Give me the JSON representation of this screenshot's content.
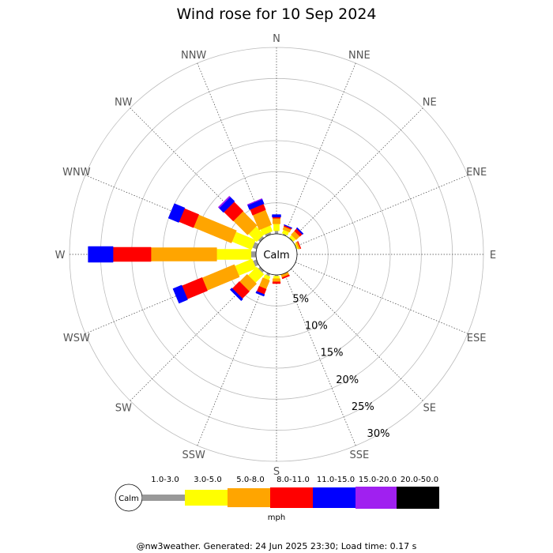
{
  "chart_data": {
    "type": "wind-rose",
    "title": "Wind rose for 10 Sep 2024",
    "directions": [
      "N",
      "NNE",
      "NE",
      "ENE",
      "E",
      "ESE",
      "SE",
      "SSE",
      "S",
      "SSW",
      "SW",
      "WSW",
      "W",
      "WNW",
      "NW",
      "NNW"
    ],
    "ring_labels": [
      "5%",
      "10%",
      "15%",
      "20%",
      "25%",
      "30%"
    ],
    "ring_values": [
      5,
      10,
      15,
      20,
      25,
      30
    ],
    "r_max": 30,
    "calm_label": "Calm",
    "unit": "mph",
    "speed_bins": [
      {
        "label": "1.0-3.0",
        "color": "#999999"
      },
      {
        "label": "3.0-5.0",
        "color": "#ffff00"
      },
      {
        "label": "5.0-8.0",
        "color": "#ffa500"
      },
      {
        "label": "8.0-11.0",
        "color": "#ff0000"
      },
      {
        "label": "11.0-15.0",
        "color": "#0000ff"
      },
      {
        "label": "15.0-20.0",
        "color": "#a020f0"
      },
      {
        "label": "20.0-50.0",
        "color": "#000000"
      }
    ],
    "series_note": "cumulative percent per direction per speed bin (index order matches speed_bins)",
    "data": [
      {
        "dir": "N",
        "angle": 0,
        "values": [
          0.5,
          1.6,
          2.5,
          2.7,
          3.1,
          3.1,
          3.1
        ]
      },
      {
        "dir": "NNE",
        "angle": 22.5,
        "values": [
          0.2,
          0.8,
          1.3,
          1.5,
          1.6,
          1.6,
          1.6
        ]
      },
      {
        "dir": "NE",
        "angle": 45,
        "values": [
          0.1,
          0.6,
          1.4,
          1.9,
          2.1,
          2.1,
          2.1
        ]
      },
      {
        "dir": "ENE",
        "angle": 67.5,
        "values": [
          0.1,
          0.3,
          0.6,
          0.7,
          0.7,
          0.7,
          0.7
        ]
      },
      {
        "dir": "E",
        "angle": 90,
        "values": [
          0.0,
          0.0,
          0.0,
          0.0,
          0.0,
          0.0,
          0.0
        ]
      },
      {
        "dir": "ESE",
        "angle": 112.5,
        "values": [
          0.0,
          0.0,
          0.0,
          0.0,
          0.0,
          0.0,
          0.0
        ]
      },
      {
        "dir": "SE",
        "angle": 135,
        "values": [
          0.0,
          0.0,
          0.0,
          0.0,
          0.0,
          0.0,
          0.0
        ]
      },
      {
        "dir": "SSE",
        "angle": 157.5,
        "values": [
          0.0,
          0.0,
          0.5,
          0.7,
          0.7,
          0.7,
          0.7
        ]
      },
      {
        "dir": "S",
        "angle": 180,
        "values": [
          0.2,
          0.6,
          1.1,
          1.4,
          1.4,
          1.4,
          1.4
        ]
      },
      {
        "dir": "SSW",
        "angle": 202.5,
        "values": [
          0.4,
          1.0,
          2.5,
          3.4,
          3.7,
          3.7,
          3.7
        ]
      },
      {
        "dir": "SW",
        "angle": 225,
        "values": [
          0.4,
          2.3,
          4.0,
          5.6,
          6.0,
          6.0,
          6.0
        ]
      },
      {
        "dir": "WSW",
        "angle": 247.5,
        "values": [
          0.6,
          3.6,
          9.2,
          12.7,
          14.2,
          14.2,
          14.2
        ]
      },
      {
        "dir": "W",
        "angle": 270,
        "values": [
          0.8,
          6.3,
          16.9,
          23.0,
          27.0,
          27.0,
          27.0
        ]
      },
      {
        "dir": "WNW",
        "angle": 292.5,
        "values": [
          0.7,
          4.1,
          10.7,
          13.2,
          15.0,
          15.0,
          15.0
        ]
      },
      {
        "dir": "NW",
        "angle": 315,
        "values": [
          0.4,
          2.2,
          5.4,
          7.5,
          8.5,
          8.7,
          8.7
        ]
      },
      {
        "dir": "NNW",
        "angle": 337.5,
        "values": [
          0.4,
          1.4,
          4.0,
          5.0,
          5.8,
          5.9,
          5.9
        ]
      }
    ]
  },
  "footer": "@nw3weather. Generated: 24 Jun 2025 23:30; Load time: 0.17 s"
}
